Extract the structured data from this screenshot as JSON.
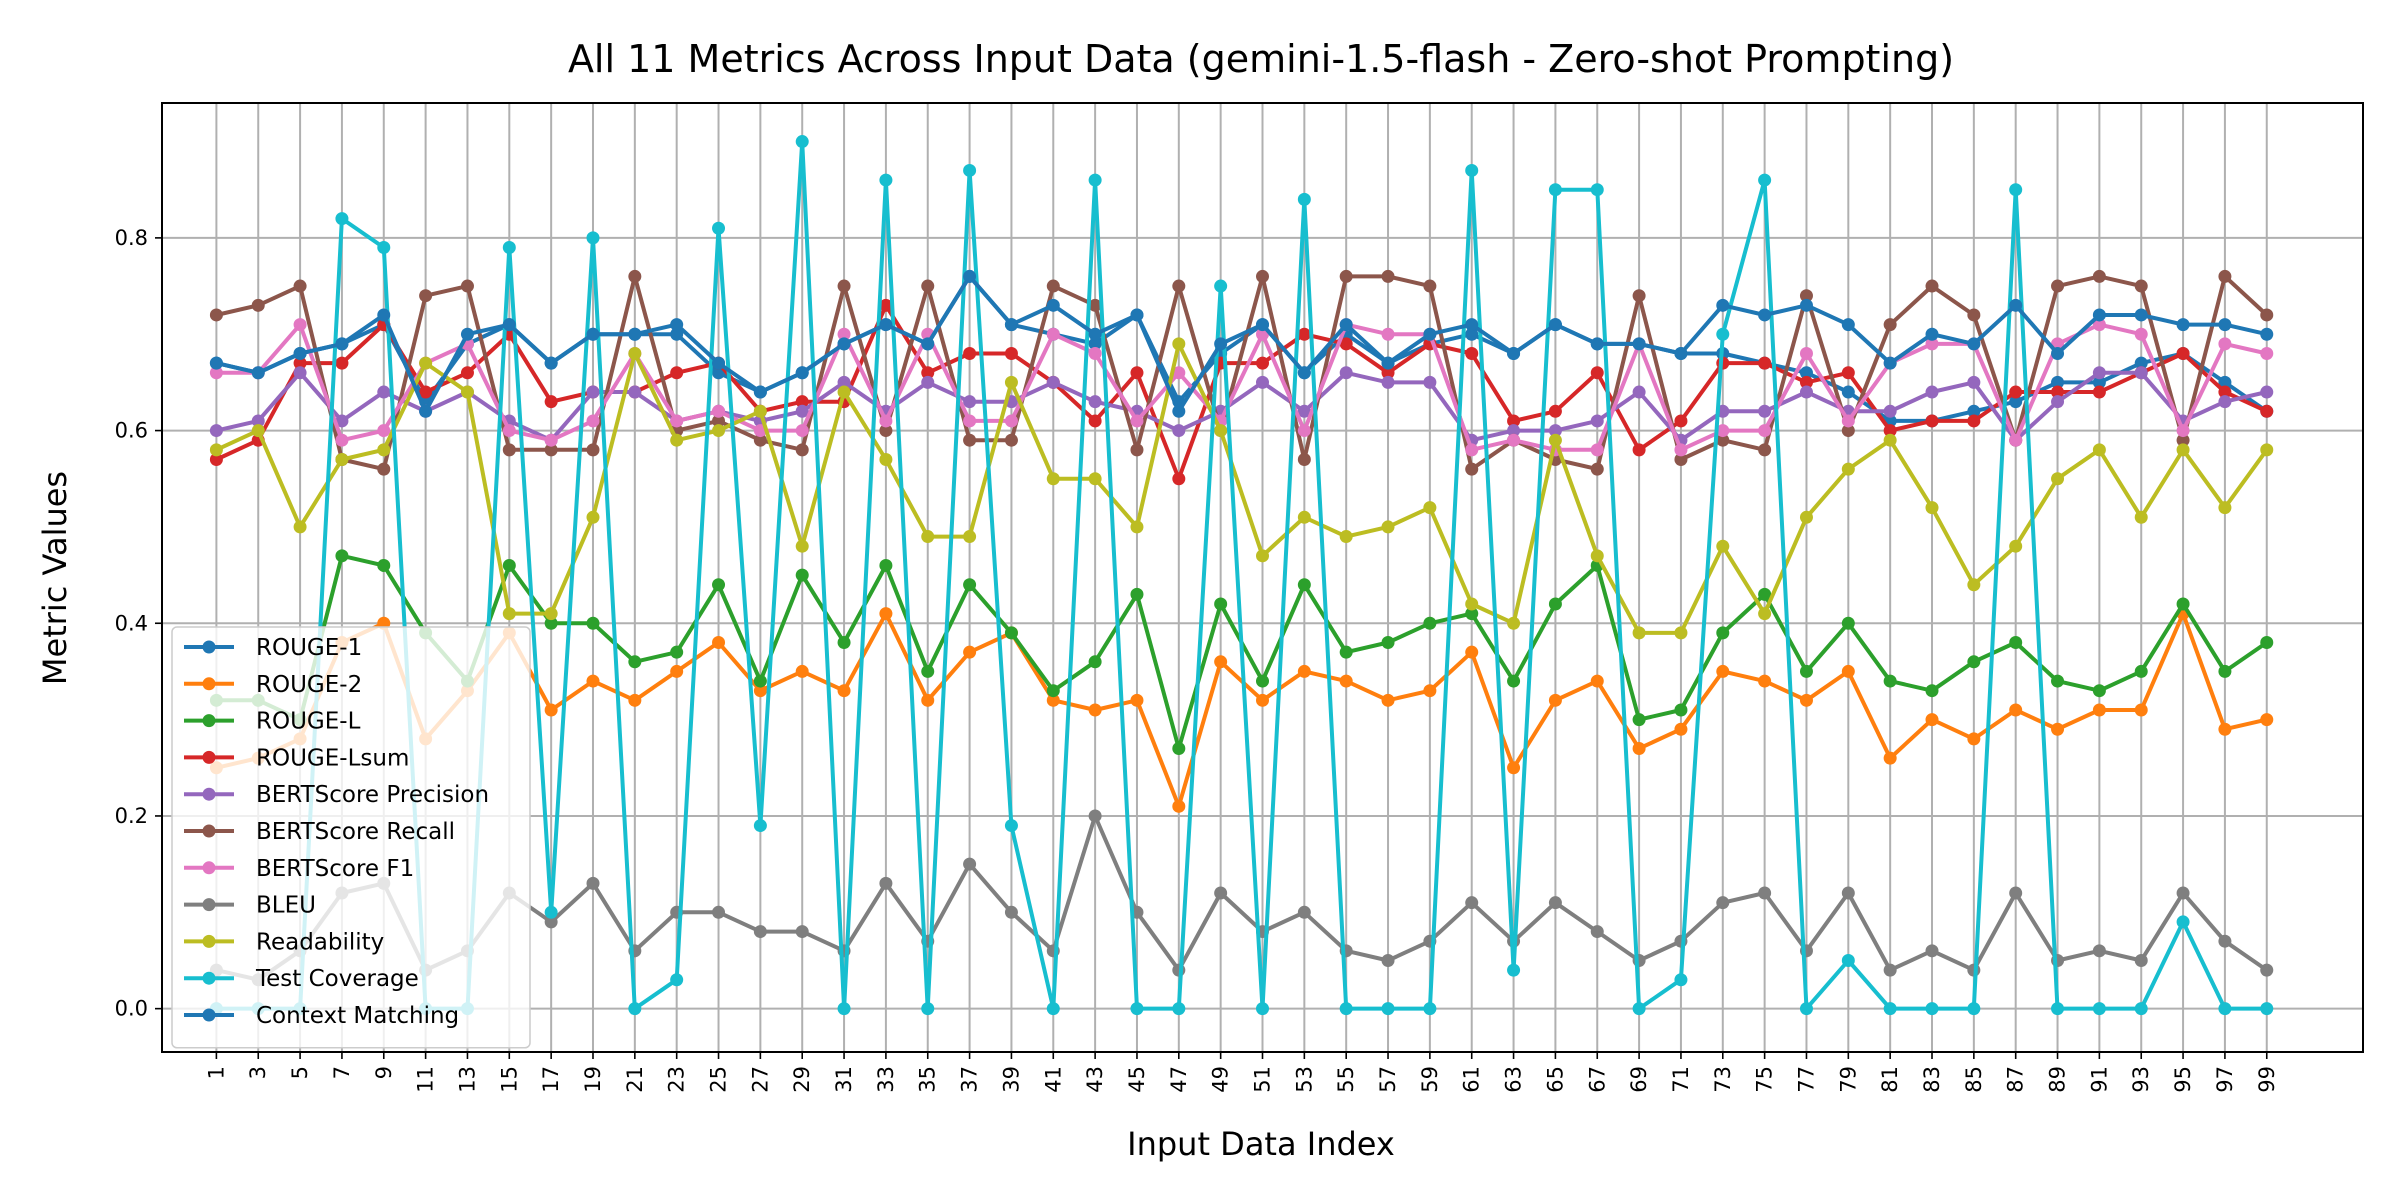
{
  "chart_data": {
    "type": "line",
    "title": "All 11 Metrics Across Input Data (gemini-1.5-flash - Zero-shot Prompting)",
    "xlabel": "Input Data Index",
    "ylabel": "Metric Values",
    "xlim": [
      -1.3,
      51.3
    ],
    "ylim": [
      -0.045,
      0.94
    ],
    "yticks": [
      0.0,
      0.2,
      0.4,
      0.6,
      0.8
    ],
    "ytick_labels": [
      "0.0",
      "0.2",
      "0.4",
      "0.6",
      "0.8"
    ],
    "grid": true,
    "legend_loc": "lower left",
    "categories": [
      "1",
      "3",
      "5",
      "7",
      "9",
      "11",
      "13",
      "15",
      "17",
      "19",
      "21",
      "23",
      "25",
      "27",
      "29",
      "31",
      "33",
      "35",
      "37",
      "39",
      "41",
      "43",
      "45",
      "47",
      "49",
      "51",
      "53",
      "55",
      "57",
      "59",
      "61",
      "63",
      "65",
      "67",
      "69",
      "71",
      "73",
      "75",
      "77",
      "79",
      "81",
      "83",
      "85",
      "87",
      "89",
      "91",
      "93",
      "95",
      "97",
      "99"
    ],
    "series": [
      {
        "name": "ROUGE-1",
        "color": "#1f77b4",
        "values": [
          0.67,
          0.66,
          0.68,
          0.69,
          0.71,
          0.63,
          0.69,
          0.71,
          0.67,
          0.7,
          0.7,
          0.7,
          0.66,
          0.64,
          0.66,
          0.69,
          0.71,
          0.69,
          0.76,
          0.71,
          0.7,
          0.69,
          0.72,
          0.63,
          0.68,
          0.71,
          0.66,
          0.7,
          0.67,
          0.69,
          0.7,
          0.68,
          0.71,
          0.69,
          0.69,
          0.68,
          0.68,
          0.67,
          0.66,
          0.64,
          0.61,
          0.61,
          0.62,
          0.63,
          0.65,
          0.65,
          0.67,
          0.68,
          0.65,
          0.62
        ]
      },
      {
        "name": "ROUGE-2",
        "color": "#ff7f0e",
        "values": [
          0.25,
          0.26,
          0.28,
          0.38,
          0.4,
          0.28,
          0.33,
          0.39,
          0.31,
          0.34,
          0.32,
          0.35,
          0.38,
          0.33,
          0.35,
          0.33,
          0.41,
          0.32,
          0.37,
          0.39,
          0.32,
          0.31,
          0.32,
          0.21,
          0.36,
          0.32,
          0.35,
          0.34,
          0.32,
          0.33,
          0.37,
          0.25,
          0.32,
          0.34,
          0.27,
          0.29,
          0.35,
          0.34,
          0.32,
          0.35,
          0.26,
          0.3,
          0.28,
          0.31,
          0.29,
          0.31,
          0.31,
          0.41,
          0.29,
          0.3
        ]
      },
      {
        "name": "ROUGE-L",
        "color": "#2ca02c",
        "values": [
          0.32,
          0.32,
          0.3,
          0.47,
          0.46,
          0.39,
          0.34,
          0.46,
          0.4,
          0.4,
          0.36,
          0.37,
          0.44,
          0.34,
          0.45,
          0.38,
          0.46,
          0.35,
          0.44,
          0.39,
          0.33,
          0.36,
          0.43,
          0.27,
          0.42,
          0.34,
          0.44,
          0.37,
          0.38,
          0.4,
          0.41,
          0.34,
          0.42,
          0.46,
          0.3,
          0.31,
          0.39,
          0.43,
          0.35,
          0.4,
          0.34,
          0.33,
          0.36,
          0.38,
          0.34,
          0.33,
          0.35,
          0.42,
          0.35,
          0.38
        ]
      },
      {
        "name": "ROUGE-Lsum",
        "color": "#d62728",
        "values": [
          0.57,
          0.59,
          0.67,
          0.67,
          0.71,
          0.64,
          0.66,
          0.7,
          0.63,
          0.64,
          0.64,
          0.66,
          0.67,
          0.62,
          0.63,
          0.63,
          0.73,
          0.66,
          0.68,
          0.68,
          0.65,
          0.61,
          0.66,
          0.55,
          0.67,
          0.67,
          0.7,
          0.69,
          0.66,
          0.69,
          0.68,
          0.61,
          0.62,
          0.66,
          0.58,
          0.61,
          0.67,
          0.67,
          0.65,
          0.66,
          0.6,
          0.61,
          0.61,
          0.64,
          0.64,
          0.64,
          0.66,
          0.68,
          0.64,
          0.62
        ]
      },
      {
        "name": "BERTScore Precision",
        "color": "#9467bd",
        "values": [
          0.6,
          0.61,
          0.66,
          0.61,
          0.64,
          0.62,
          0.64,
          0.61,
          0.59,
          0.64,
          0.64,
          0.61,
          0.62,
          0.61,
          0.62,
          0.65,
          0.62,
          0.65,
          0.63,
          0.63,
          0.65,
          0.63,
          0.62,
          0.6,
          0.62,
          0.65,
          0.62,
          0.66,
          0.65,
          0.65,
          0.59,
          0.6,
          0.6,
          0.61,
          0.64,
          0.59,
          0.62,
          0.62,
          0.64,
          0.62,
          0.62,
          0.64,
          0.65,
          0.59,
          0.63,
          0.66,
          0.66,
          0.61,
          0.63,
          0.64
        ]
      },
      {
        "name": "BERTScore Recall",
        "color": "#8c564b",
        "values": [
          0.72,
          0.73,
          0.75,
          0.57,
          0.56,
          0.74,
          0.75,
          0.58,
          0.58,
          0.58,
          0.76,
          0.6,
          0.61,
          0.59,
          0.58,
          0.75,
          0.6,
          0.75,
          0.59,
          0.59,
          0.75,
          0.73,
          0.58,
          0.75,
          0.6,
          0.76,
          0.57,
          0.76,
          0.76,
          0.75,
          0.56,
          0.59,
          0.57,
          0.56,
          0.74,
          0.57,
          0.59,
          0.58,
          0.74,
          0.6,
          0.71,
          0.75,
          0.72,
          0.59,
          0.75,
          0.76,
          0.75,
          0.59,
          0.76,
          0.72
        ]
      },
      {
        "name": "BERTScore F1",
        "color": "#e377c2",
        "values": [
          0.66,
          0.66,
          0.71,
          0.59,
          0.6,
          0.67,
          0.69,
          0.6,
          0.59,
          0.61,
          0.68,
          0.61,
          0.62,
          0.6,
          0.6,
          0.7,
          0.61,
          0.7,
          0.61,
          0.61,
          0.7,
          0.68,
          0.61,
          0.66,
          0.61,
          0.7,
          0.6,
          0.71,
          0.7,
          0.7,
          0.58,
          0.59,
          0.58,
          0.58,
          0.69,
          0.58,
          0.6,
          0.6,
          0.68,
          0.61,
          0.67,
          0.69,
          0.69,
          0.59,
          0.69,
          0.71,
          0.7,
          0.6,
          0.69,
          0.68
        ]
      },
      {
        "name": "BLEU",
        "color": "#7f7f7f",
        "values": [
          0.04,
          0.03,
          0.06,
          0.12,
          0.13,
          0.04,
          0.06,
          0.12,
          0.09,
          0.13,
          0.06,
          0.1,
          0.1,
          0.08,
          0.08,
          0.06,
          0.13,
          0.07,
          0.15,
          0.1,
          0.06,
          0.2,
          0.1,
          0.04,
          0.12,
          0.08,
          0.1,
          0.06,
          0.05,
          0.07,
          0.11,
          0.07,
          0.11,
          0.08,
          0.05,
          0.07,
          0.11,
          0.12,
          0.06,
          0.12,
          0.04,
          0.06,
          0.04,
          0.12,
          0.05,
          0.06,
          0.05,
          0.12,
          0.07,
          0.04
        ]
      },
      {
        "name": "Readability",
        "color": "#bcbd22",
        "values": [
          0.58,
          0.6,
          0.5,
          0.57,
          0.58,
          0.67,
          0.64,
          0.41,
          0.41,
          0.51,
          0.68,
          0.59,
          0.6,
          0.62,
          0.48,
          0.64,
          0.57,
          0.49,
          0.49,
          0.65,
          0.55,
          0.55,
          0.5,
          0.69,
          0.6,
          0.47,
          0.51,
          0.49,
          0.5,
          0.52,
          0.42,
          0.4,
          0.59,
          0.47,
          0.39,
          0.39,
          0.48,
          0.41,
          0.51,
          0.56,
          0.59,
          0.52,
          0.44,
          0.48,
          0.55,
          0.58,
          0.51,
          0.58,
          0.52,
          0.58
        ]
      },
      {
        "name": "Test Coverage",
        "color": "#17becf",
        "values": [
          0.0,
          0.0,
          0.0,
          0.82,
          0.79,
          0.0,
          0.0,
          0.79,
          0.1,
          0.8,
          0.0,
          0.03,
          0.81,
          0.19,
          0.9,
          0.0,
          0.86,
          0.0,
          0.87,
          0.19,
          0.0,
          0.86,
          0.0,
          0.0,
          0.75,
          0.0,
          0.84,
          0.0,
          0.0,
          0.0,
          0.87,
          0.04,
          0.85,
          0.85,
          0.0,
          0.03,
          0.7,
          0.86,
          0.0,
          0.05,
          0.0,
          0.0,
          0.0,
          0.85,
          0.0,
          0.0,
          0.0,
          0.09,
          0.0,
          0.0
        ]
      },
      {
        "name": "Context Matching",
        "color": "#1f77b4",
        "values": [
          0.67,
          0.66,
          0.68,
          0.69,
          0.72,
          0.62,
          0.7,
          0.71,
          0.67,
          0.7,
          0.7,
          0.71,
          0.67,
          0.64,
          0.66,
          0.69,
          0.71,
          0.69,
          0.76,
          0.71,
          0.73,
          0.7,
          0.72,
          0.62,
          0.69,
          0.71,
          0.66,
          0.71,
          0.67,
          0.7,
          0.71,
          0.68,
          0.71,
          0.69,
          0.69,
          0.68,
          0.73,
          0.72,
          0.73,
          0.71,
          0.67,
          0.7,
          0.69,
          0.73,
          0.68,
          0.72,
          0.72,
          0.71,
          0.71,
          0.7
        ]
      }
    ]
  }
}
